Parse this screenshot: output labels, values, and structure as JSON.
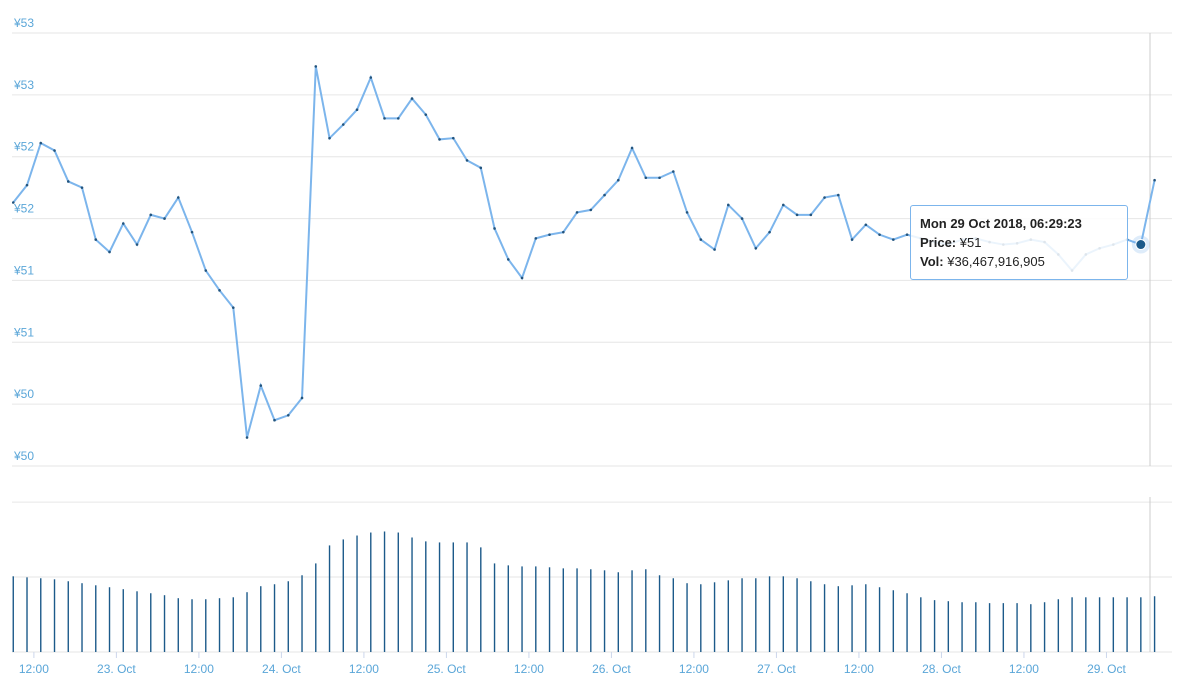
{
  "chart_data": {
    "type": "stock",
    "x": [
      "2018-10-22T09:00",
      "2018-10-22T11:00",
      "2018-10-22T13:00",
      "2018-10-22T15:00",
      "2018-10-22T17:00",
      "2018-10-22T19:00",
      "2018-10-22T21:00",
      "2018-10-22T23:00",
      "2018-10-23T01:00",
      "2018-10-23T03:00",
      "2018-10-23T05:00",
      "2018-10-23T07:00",
      "2018-10-23T09:00",
      "2018-10-23T11:00",
      "2018-10-23T13:00",
      "2018-10-23T15:00",
      "2018-10-23T17:00",
      "2018-10-23T19:00",
      "2018-10-23T21:00",
      "2018-10-23T23:00",
      "2018-10-24T01:00",
      "2018-10-24T03:00",
      "2018-10-24T05:00",
      "2018-10-24T07:00",
      "2018-10-24T09:00",
      "2018-10-24T11:00",
      "2018-10-24T13:00",
      "2018-10-24T15:00",
      "2018-10-24T17:00",
      "2018-10-24T19:00",
      "2018-10-24T21:00",
      "2018-10-24T23:00",
      "2018-10-25T01:00",
      "2018-10-25T03:00",
      "2018-10-25T05:00",
      "2018-10-25T07:00",
      "2018-10-25T09:00",
      "2018-10-25T11:00",
      "2018-10-25T13:00",
      "2018-10-25T15:00",
      "2018-10-25T17:00",
      "2018-10-25T19:00",
      "2018-10-25T21:00",
      "2018-10-25T23:00",
      "2018-10-26T01:00",
      "2018-10-26T03:00",
      "2018-10-26T05:00",
      "2018-10-26T07:00",
      "2018-10-26T09:00",
      "2018-10-26T11:00",
      "2018-10-26T13:00",
      "2018-10-26T15:00",
      "2018-10-26T17:00",
      "2018-10-26T19:00",
      "2018-10-26T21:00",
      "2018-10-26T23:00",
      "2018-10-27T01:00",
      "2018-10-27T03:00",
      "2018-10-27T05:00",
      "2018-10-27T07:00",
      "2018-10-27T09:00",
      "2018-10-27T11:00",
      "2018-10-27T13:00",
      "2018-10-27T15:00",
      "2018-10-27T17:00",
      "2018-10-27T19:00",
      "2018-10-27T21:00",
      "2018-10-27T23:00",
      "2018-10-28T01:00",
      "2018-10-28T03:00",
      "2018-10-28T05:00",
      "2018-10-28T07:00",
      "2018-10-28T09:00",
      "2018-10-28T11:00",
      "2018-10-28T13:00",
      "2018-10-28T15:00",
      "2018-10-28T17:00",
      "2018-10-28T19:00",
      "2018-10-28T21:00",
      "2018-10-28T23:00",
      "2018-10-29T01:00",
      "2018-10-29T03:00",
      "2018-10-29T05:00",
      "2018-10-29T07:00"
    ],
    "series": [
      {
        "name": "Price",
        "color": "#7cb5ec",
        "values": [
          52.03,
          52.17,
          52.51,
          52.45,
          52.2,
          52.15,
          51.73,
          51.63,
          51.86,
          51.69,
          51.93,
          51.9,
          52.07,
          51.79,
          51.48,
          51.32,
          51.18,
          50.13,
          50.55,
          50.27,
          50.31,
          50.45,
          53.13,
          52.55,
          52.66,
          52.78,
          53.04,
          52.71,
          52.71,
          52.87,
          52.74,
          52.54,
          52.55,
          52.37,
          52.31,
          51.82,
          51.57,
          51.42,
          51.74,
          51.77,
          51.79,
          51.95,
          51.97,
          52.09,
          52.21,
          52.47,
          52.23,
          52.23,
          52.28,
          51.95,
          51.73,
          51.65,
          52.01,
          51.9,
          51.66,
          51.79,
          52.01,
          51.93,
          51.93,
          52.07,
          52.09,
          51.73,
          51.85,
          51.77,
          51.73,
          51.77,
          51.74,
          51.71,
          51.69,
          51.73,
          51.74,
          51.71,
          51.69,
          51.7,
          51.73,
          51.71,
          51.61,
          51.48,
          51.61,
          51.66,
          51.69,
          51.73,
          51.69,
          52.21
        ]
      },
      {
        "name": "Vol",
        "color": "#1c5a8a",
        "axis": "y2",
        "values": [
          50.5,
          49.8,
          49.2,
          48.5,
          47.2,
          45.9,
          44.5,
          43.2,
          41.9,
          40.5,
          39.2,
          37.9,
          35.9,
          35.2,
          35.2,
          35.9,
          36.5,
          39.9,
          43.9,
          45.2,
          47.2,
          51.2,
          59.1,
          71.1,
          75.1,
          77.7,
          79.7,
          80.4,
          79.7,
          76.4,
          73.8,
          73.1,
          73.1,
          73.1,
          69.8,
          59.1,
          57.8,
          57.1,
          57.1,
          56.5,
          55.8,
          55.8,
          55.2,
          54.5,
          53.2,
          54.5,
          55.2,
          51.2,
          49.2,
          45.9,
          45.2,
          46.5,
          47.8,
          49.2,
          49.2,
          50.5,
          50.5,
          49.2,
          47.2,
          45.2,
          43.9,
          44.5,
          45.2,
          43.2,
          41.2,
          39.2,
          36.5,
          34.6,
          33.9,
          33.2,
          33.2,
          32.6,
          32.6,
          32.6,
          31.9,
          33.2,
          35.2,
          36.5,
          36.5,
          36.5,
          36.5,
          36.5,
          36.5,
          37.2
        ]
      }
    ],
    "xlim": [
      "2018-10-22T08:49",
      "2018-10-29T09:32"
    ],
    "xticks": [
      {
        "value": "2018-10-22T12:00",
        "label": "12:00"
      },
      {
        "value": "2018-10-23T00:00",
        "label": "23. Oct"
      },
      {
        "value": "2018-10-23T12:00",
        "label": "12:00"
      },
      {
        "value": "2018-10-24T00:00",
        "label": "24. Oct"
      },
      {
        "value": "2018-10-24T12:00",
        "label": "12:00"
      },
      {
        "value": "2018-10-25T00:00",
        "label": "25. Oct"
      },
      {
        "value": "2018-10-25T12:00",
        "label": "12:00"
      },
      {
        "value": "2018-10-26T00:00",
        "label": "26. Oct"
      },
      {
        "value": "2018-10-26T12:00",
        "label": "12:00"
      },
      {
        "value": "2018-10-27T00:00",
        "label": "27. Oct"
      },
      {
        "value": "2018-10-27T12:00",
        "label": "12:00"
      },
      {
        "value": "2018-10-28T00:00",
        "label": "28. Oct"
      },
      {
        "value": "2018-10-28T12:00",
        "label": "12:00"
      },
      {
        "value": "2018-10-29T00:00",
        "label": "29. Oct"
      }
    ],
    "ylim": [
      49.9,
      53.4
    ],
    "yticks": [
      {
        "value": 49.9,
        "label": "¥50"
      },
      {
        "value": 50.4,
        "label": "¥50"
      },
      {
        "value": 50.9,
        "label": "¥51"
      },
      {
        "value": 51.4,
        "label": "¥51"
      },
      {
        "value": 51.9,
        "label": "¥52"
      },
      {
        "value": 52.4,
        "label": "¥52"
      },
      {
        "value": 52.9,
        "label": "¥53"
      },
      {
        "value": 53.4,
        "label": "¥53"
      }
    ],
    "y2lim": [
      0,
      103.4
    ],
    "y2ticks": [
      0,
      50,
      100
    ],
    "grid": true,
    "tooltip": {
      "title": "Mon 29 Oct 2018, 06:29:23",
      "price_label": "Price:",
      "price": "¥51",
      "vol_label": "Vol:",
      "vol": "¥36,467,916,905"
    }
  }
}
